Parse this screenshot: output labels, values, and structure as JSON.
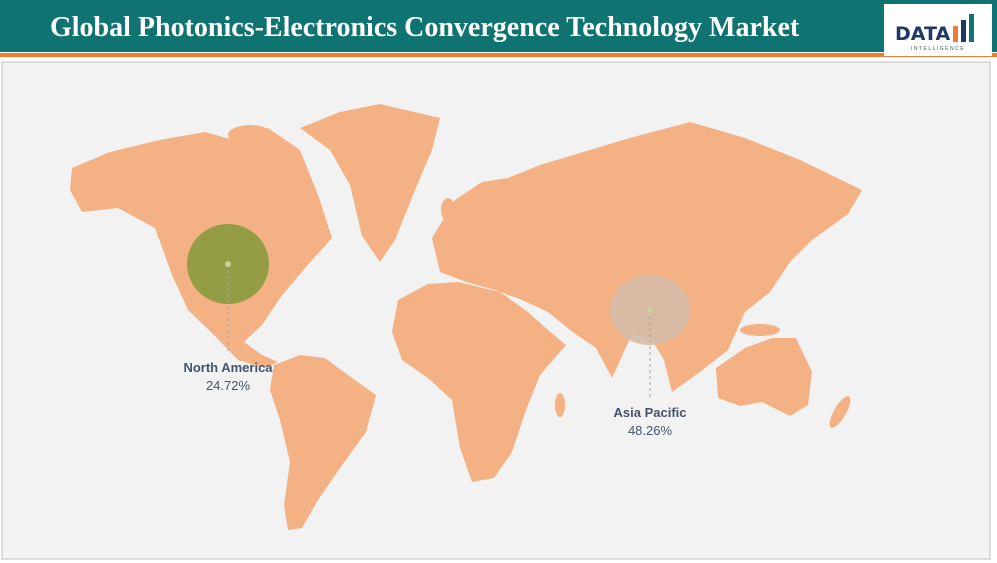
{
  "title": "Global Photonics-Electronics Convergence Technology Market",
  "logo": {
    "text": "DATA",
    "subtext": "INTELLIGENCE"
  },
  "regions": [
    {
      "name": "North America",
      "value": 24.72,
      "value_label": "24.72%",
      "color": "#8a9a3e"
    },
    {
      "name": "Asia Pacific",
      "value": 48.26,
      "value_label": "48.26%",
      "color": "#d6bba8"
    }
  ]
}
